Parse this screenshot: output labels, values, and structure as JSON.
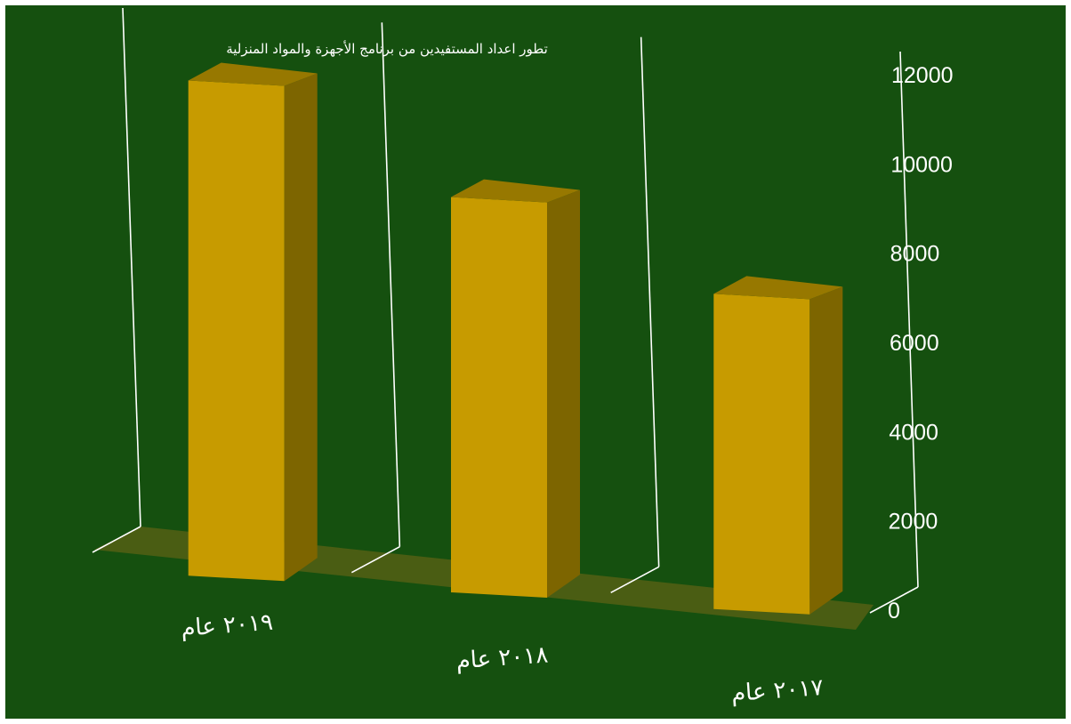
{
  "chart_data": {
    "type": "bar",
    "title": "تطور اعداد المستفيدين من برنامج الأجهزة والمواد المنزلية",
    "categories": [
      "٢٠١٩ عام",
      "٢٠١٨ عام",
      "٢٠١٧ عام"
    ],
    "values": [
      11400,
      9000,
      7100
    ],
    "yticks": [
      0,
      2000,
      4000,
      6000,
      8000,
      10000,
      12000
    ],
    "ylim": [
      0,
      12000
    ],
    "xlabel": "",
    "ylabel": "",
    "grid": true,
    "three_d": true,
    "colors": {
      "background": "#15500f",
      "bar_front": "#c79b00",
      "bar_top": "#977800",
      "bar_side": "#7d6500",
      "floor": "#4a5d13",
      "grid_line": "#ffffff",
      "text": "#ffffff"
    }
  }
}
